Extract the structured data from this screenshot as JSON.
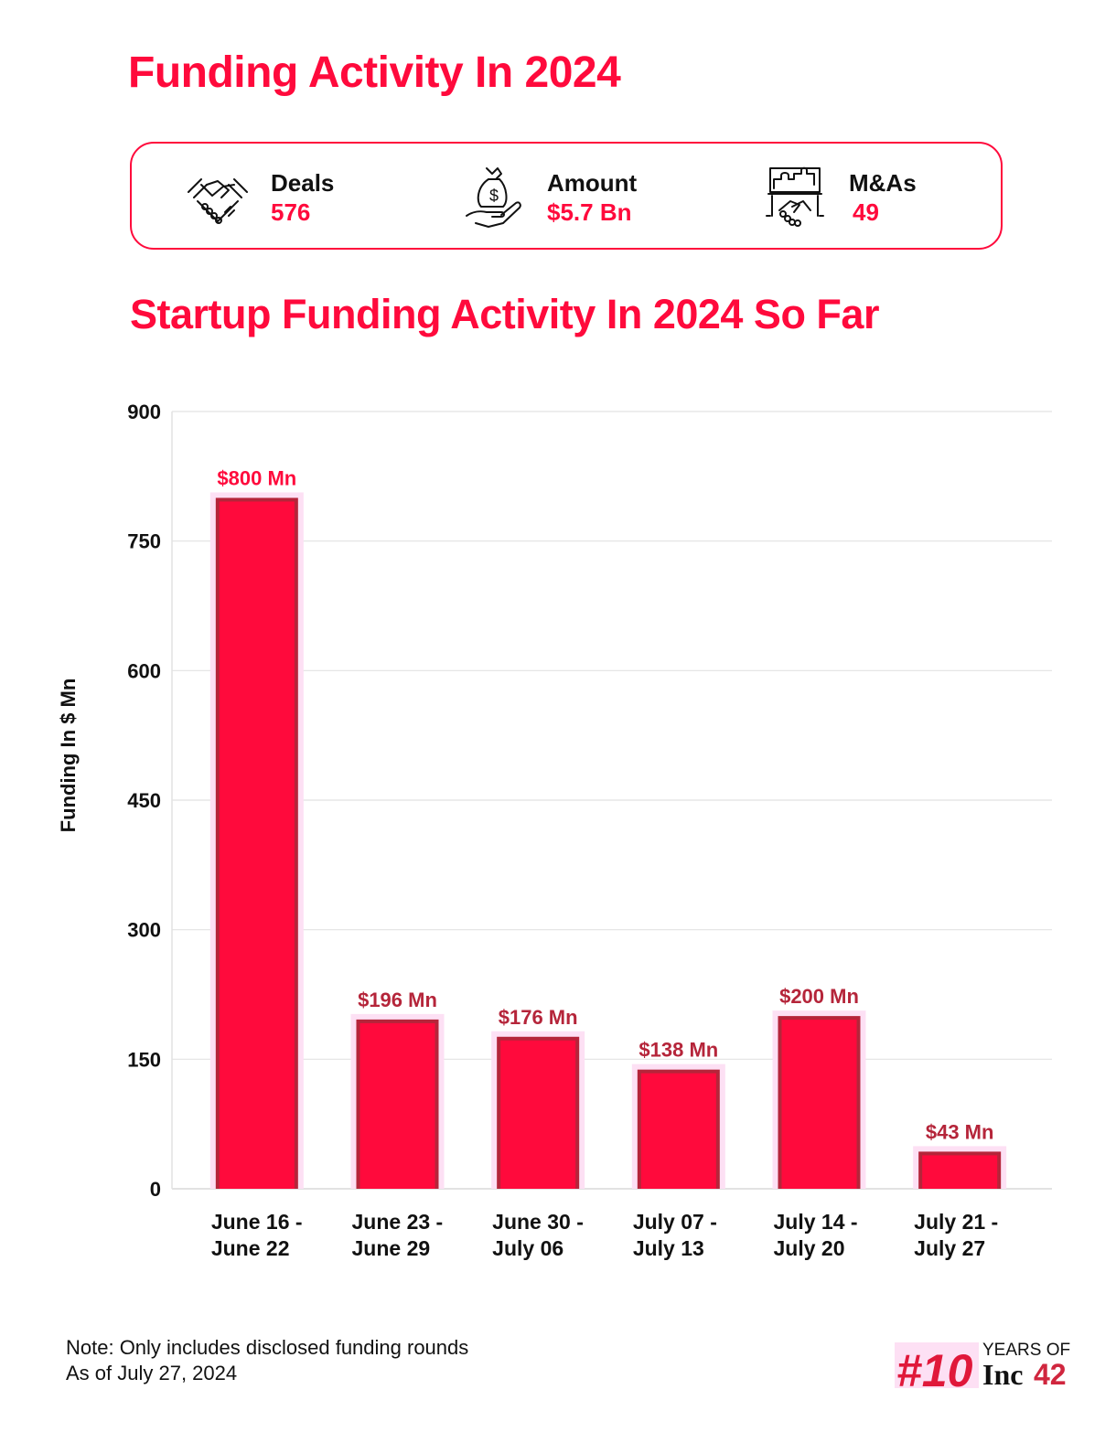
{
  "header": {
    "title": "Funding Activity In 2024"
  },
  "stats": [
    {
      "icon": "handshake-icon",
      "label": "Deals",
      "value": "576"
    },
    {
      "icon": "money-bag-hand-icon",
      "label": "Amount",
      "value": "$5.7 Bn"
    },
    {
      "icon": "puzzle-handshake-icon",
      "label": "M&As",
      "value": "49"
    }
  ],
  "colors": {
    "accent": "#ff0a3c",
    "bar": "#ff0a3c",
    "bar_shadow": "#b5253a",
    "grid": "#e2e2e2",
    "text": "#111111"
  },
  "chart_data": {
    "type": "bar",
    "title": "Startup Funding Activity In 2024 So Far",
    "xlabel": "",
    "ylabel": "Funding In $ Mn",
    "ylim": [
      0,
      900
    ],
    "yticks": [
      0,
      150,
      300,
      450,
      600,
      750,
      900
    ],
    "grid": true,
    "categories": [
      [
        "June 16 -",
        "June 22"
      ],
      [
        "June 23 -",
        "June 29"
      ],
      [
        "June 30 -",
        "July 06"
      ],
      [
        "July 07 -",
        "July 13"
      ],
      [
        "July 14 -",
        "July 20"
      ],
      [
        "July 21 -",
        "July 27"
      ]
    ],
    "values": [
      800,
      196,
      176,
      138,
      200,
      43
    ],
    "data_labels": [
      "$800 Mn",
      "$196 Mn",
      "$176 Mn",
      "$138 Mn",
      "$200 Mn",
      "$43 Mn"
    ]
  },
  "footer": {
    "note_line1": "Note: Only includes disclosed funding rounds",
    "note_line2": "As of July 27, 2024",
    "logo_text": {
      "hash10": "#10",
      "years_of": "YEARS OF",
      "inc": "Inc",
      "num": "42"
    }
  }
}
